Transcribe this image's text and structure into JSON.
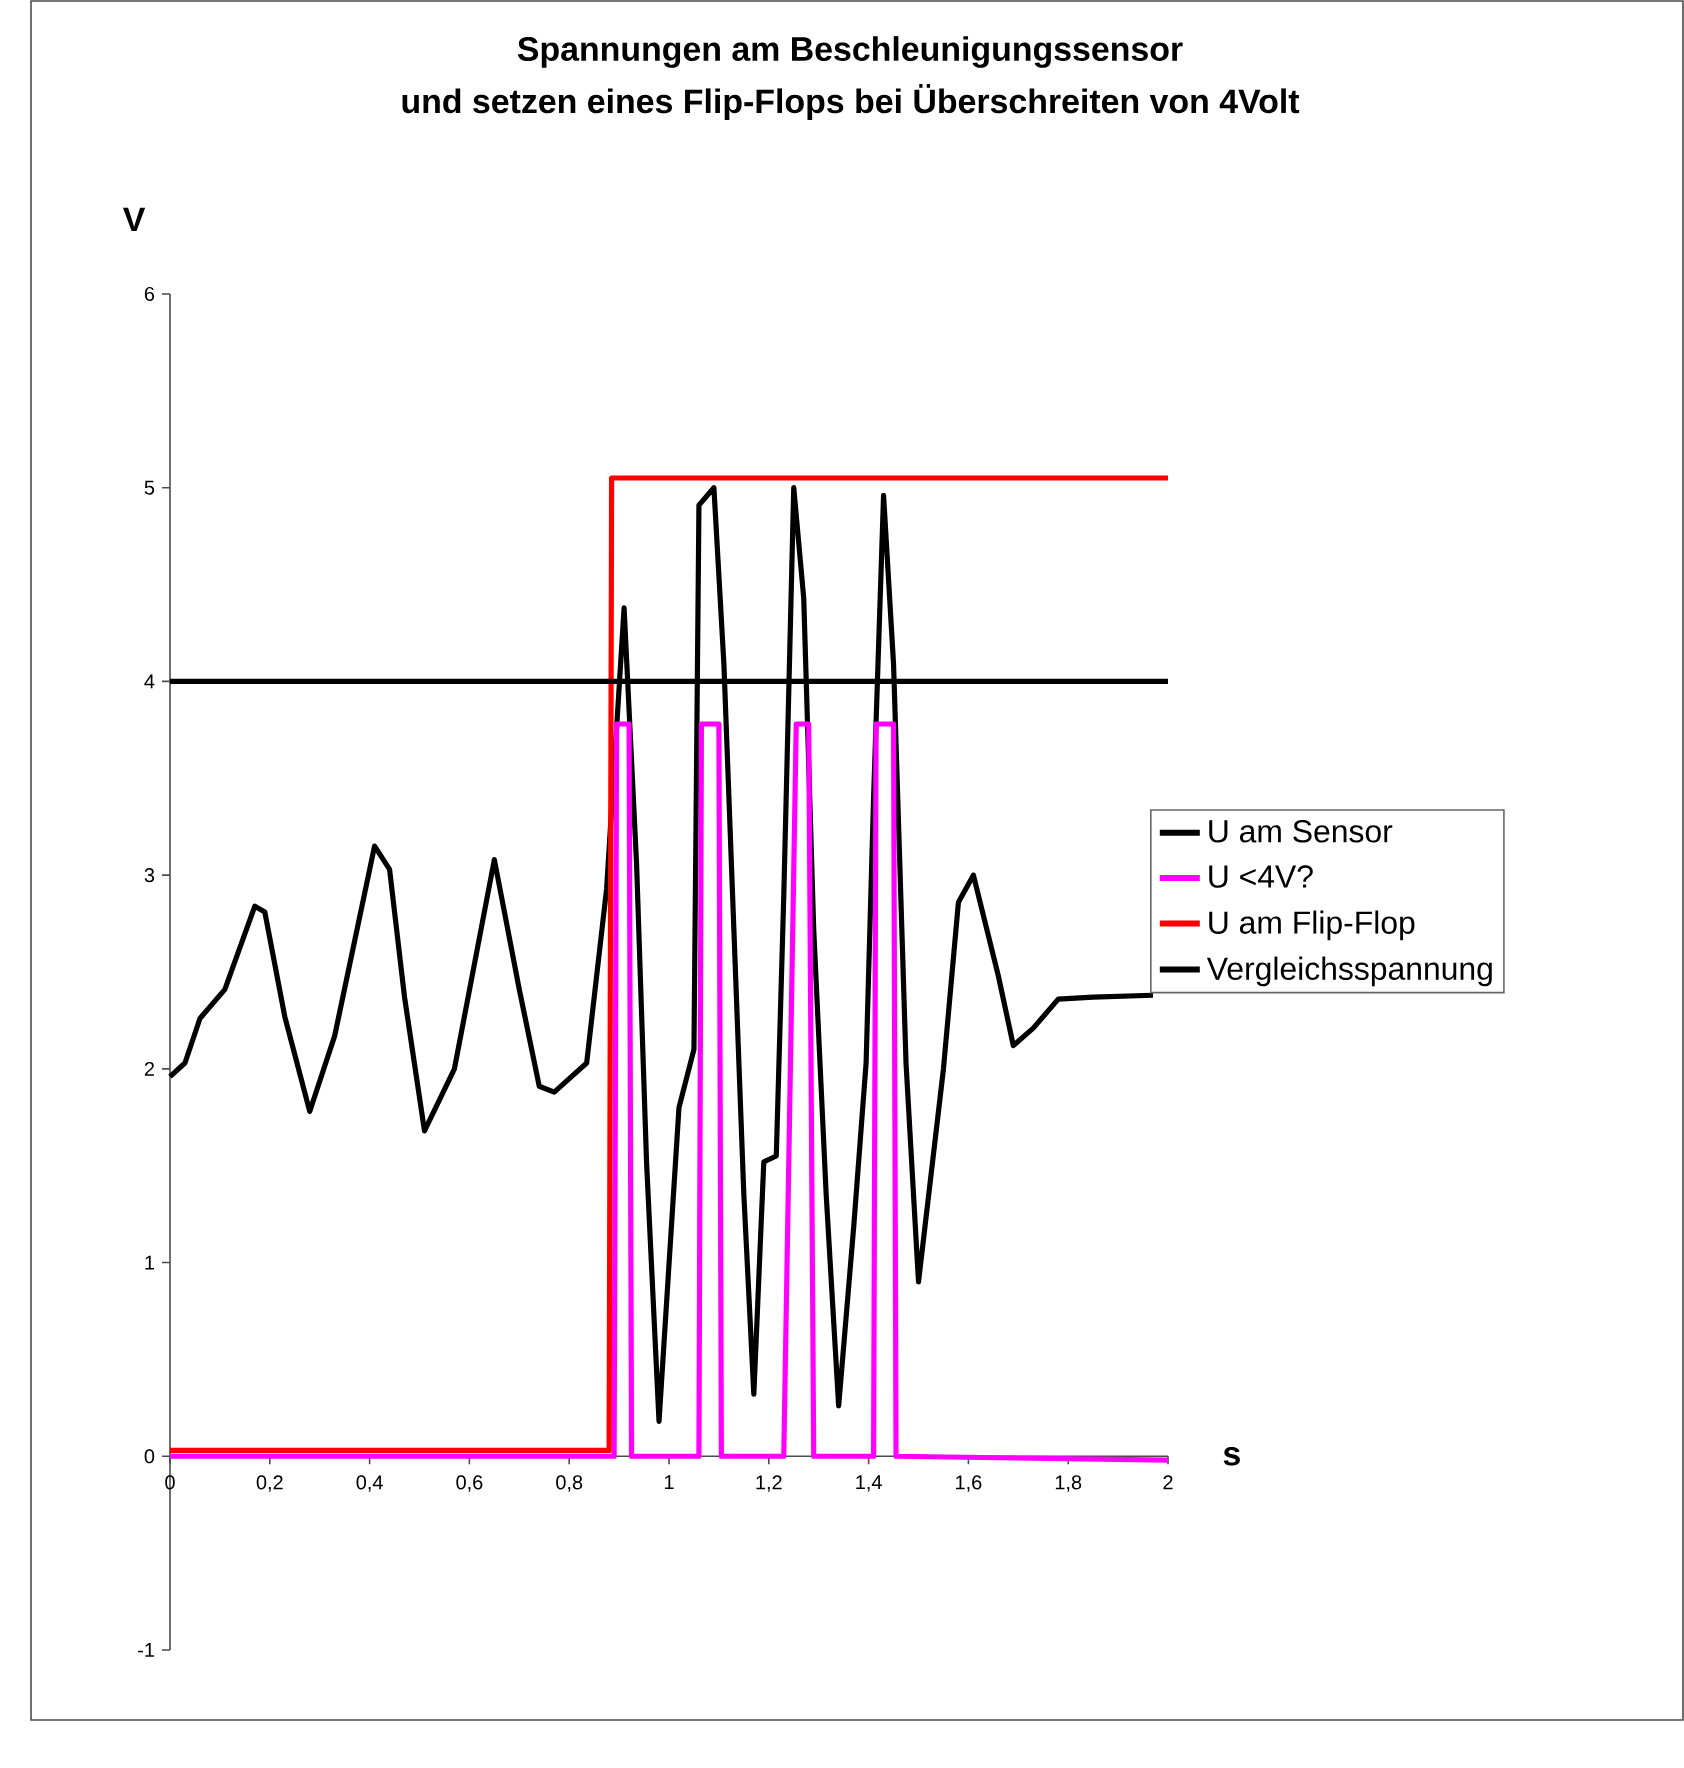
{
  "chart_data": {
    "type": "line",
    "title": "Spannungen am Beschleunigungssensor",
    "subtitle": "und setzen eines Flip-Flops bei Überschreiten von 4Volt",
    "xlabel": "s",
    "ylabel": "V",
    "xlim": [
      0,
      2
    ],
    "ylim": [
      -1,
      6
    ],
    "xticks": [
      0,
      {
        "value": 0.2,
        "label": "0,2"
      },
      {
        "value": 0.4,
        "label": "0,4"
      },
      {
        "value": 0.6,
        "label": "0,6"
      },
      {
        "value": 0.8,
        "label": "0,8"
      },
      1,
      {
        "value": 1.2,
        "label": "1,2"
      },
      {
        "value": 1.4,
        "label": "1,4"
      },
      {
        "value": 1.6,
        "label": "1,6"
      },
      {
        "value": 1.8,
        "label": "1,8"
      },
      2
    ],
    "yticks": [
      -1,
      0,
      1,
      2,
      3,
      4,
      5,
      6
    ],
    "grid": false,
    "legend": "right",
    "series": [
      {
        "name": "U am Sensor",
        "color": "#000000",
        "x": [
          0,
          0.03,
          0.06,
          0.11,
          0.17,
          0.19,
          0.23,
          0.28,
          0.33,
          0.41,
          0.44,
          0.47,
          0.51,
          0.57,
          0.65,
          0.7,
          0.74,
          0.77,
          0.835,
          0.875,
          0.91,
          0.935,
          0.955,
          0.98,
          1.02,
          1.05,
          1.06,
          1.09,
          1.11,
          1.13,
          1.15,
          1.17,
          1.19,
          1.215,
          1.23,
          1.25,
          1.27,
          1.29,
          1.315,
          1.34,
          1.37,
          1.395,
          1.41,
          1.43,
          1.45,
          1.475,
          1.5,
          1.55,
          1.58,
          1.61,
          1.66,
          1.69,
          1.73,
          1.78,
          1.85,
          1.97
        ],
        "values": [
          1.96,
          2.03,
          2.26,
          2.41,
          2.84,
          2.81,
          2.27,
          1.78,
          2.17,
          3.15,
          3.03,
          2.37,
          1.68,
          2.0,
          3.08,
          2.41,
          1.91,
          1.88,
          2.03,
          2.93,
          4.38,
          3.06,
          1.52,
          0.18,
          1.8,
          2.1,
          4.91,
          5.0,
          4.09,
          2.72,
          1.35,
          0.32,
          1.52,
          1.55,
          2.89,
          5.0,
          4.43,
          2.72,
          1.35,
          0.26,
          1.18,
          2.03,
          3.4,
          4.96,
          4.09,
          2.03,
          0.9,
          2.0,
          2.86,
          3.0,
          2.48,
          2.12,
          2.21,
          2.36,
          2.37,
          2.38
        ]
      },
      {
        "name": "U <4V?",
        "color": "#ff00ff",
        "x": [
          0,
          0.89,
          0.895,
          0.92,
          0.925,
          1.06,
          1.065,
          1.1,
          1.105,
          1.23,
          1.255,
          1.28,
          1.29,
          1.41,
          1.415,
          1.45,
          1.455,
          2
        ],
        "values": [
          0,
          0,
          3.78,
          3.78,
          0,
          0,
          3.78,
          3.78,
          0,
          0,
          3.78,
          3.78,
          0,
          0,
          3.78,
          3.78,
          0,
          -0.02
        ]
      },
      {
        "name": "U am Flip-Flop",
        "color": "#ff0000",
        "x": [
          0,
          0.88,
          0.885,
          2
        ],
        "values": [
          0.03,
          0.03,
          5.05,
          5.05
        ]
      },
      {
        "name": "Vergleichsspannung",
        "color": "#000000",
        "x": [
          0,
          2
        ],
        "values": [
          4,
          4
        ]
      }
    ]
  }
}
